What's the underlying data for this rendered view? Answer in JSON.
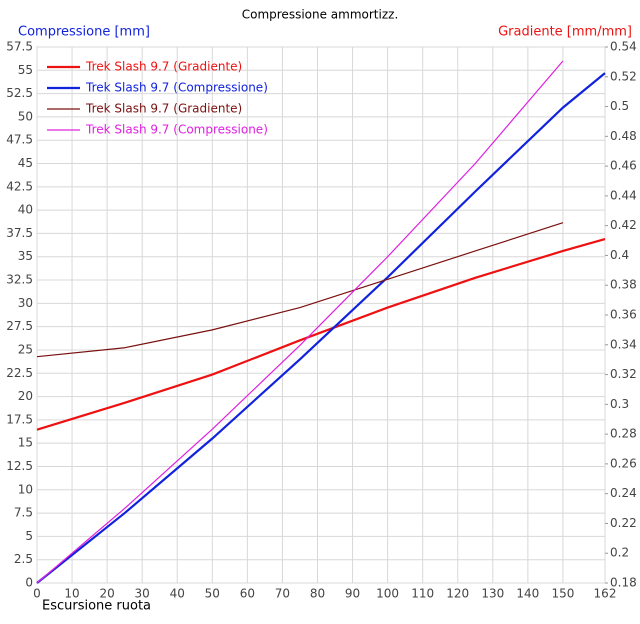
{
  "chart_data": {
    "type": "line",
    "title": "Compressione ammortizz.",
    "y_label": "Compressione [mm]",
    "y2_label": "Gradiente [mm/mm]",
    "x_label": "Escursione ruota",
    "xlim": [
      0,
      162
    ],
    "xticks": [
      0,
      10,
      20,
      30,
      40,
      50,
      60,
      70,
      80,
      90,
      100,
      110,
      120,
      130,
      140,
      150,
      162
    ],
    "ylim": [
      0,
      57.5
    ],
    "yticks": [
      0,
      2.5,
      5,
      7.5,
      10,
      12.5,
      15,
      17.5,
      20,
      22.5,
      25,
      27.5,
      30,
      32.5,
      35,
      37.5,
      40,
      42.5,
      45,
      47.5,
      50,
      52.5,
      55,
      57.5
    ],
    "y2lim": [
      0.18,
      0.54
    ],
    "y2ticks": [
      0.18,
      0.2,
      0.22,
      0.24,
      0.26,
      0.28,
      0.3,
      0.32,
      0.34,
      0.36,
      0.38,
      0.4,
      0.42,
      0.44,
      0.46,
      0.48,
      0.5,
      0.52,
      0.54
    ],
    "grid": true,
    "series": [
      {
        "name": "Trek Slash 9.7 (Gradiente)",
        "color": "#ee1111",
        "width": 2.2,
        "axis": "y2",
        "x": [
          0,
          25,
          50,
          75,
          100,
          125,
          150,
          162
        ],
        "values": [
          0.283,
          0.301,
          0.32,
          0.343,
          0.365,
          0.385,
          0.403,
          0.411
        ]
      },
      {
        "name": "Trek Slash 9.7 (Compressione)",
        "color": "#1122dd",
        "width": 2.2,
        "axis": "y",
        "x": [
          0,
          25,
          50,
          75,
          100,
          125,
          150,
          162
        ],
        "values": [
          0,
          7.5,
          15.5,
          24,
          32.8,
          42,
          51,
          54.7
        ]
      },
      {
        "name": "Trek Slash 9.7 (Gradiente)",
        "color": "#7a1010",
        "width": 1.2,
        "axis": "y2",
        "x": [
          0,
          25,
          50,
          75,
          100,
          125,
          150
        ],
        "values": [
          0.332,
          0.338,
          0.35,
          0.365,
          0.384,
          0.403,
          0.422
        ]
      },
      {
        "name": "Trek Slash 9.7 (Compressione)",
        "color": "#e020e0",
        "width": 1.2,
        "axis": "y",
        "x": [
          0,
          25,
          50,
          75,
          100,
          125,
          150
        ],
        "values": [
          0,
          8,
          16.5,
          25.5,
          35,
          45,
          56
        ]
      }
    ]
  }
}
